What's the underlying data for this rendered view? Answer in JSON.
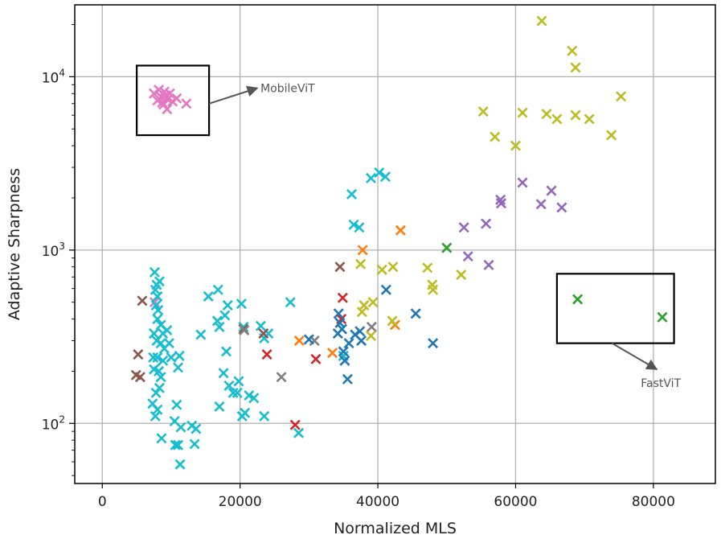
{
  "chart_data": {
    "type": "scatter",
    "title": "",
    "xlabel": "Normalized MLS",
    "ylabel": "Adaptive Sharpness",
    "xlim": [
      -4000,
      89000
    ],
    "ylim": [
      45,
      26000
    ],
    "yscale": "log",
    "grid": true,
    "marker": "x",
    "x_ticks": [
      0,
      20000,
      40000,
      60000,
      80000
    ],
    "x_tick_labels": [
      "0",
      "20000",
      "40000",
      "60000",
      "80000"
    ],
    "y_ticks": [
      100,
      1000,
      10000
    ],
    "y_tick_labels": [
      {
        "base": "10",
        "exp": "2"
      },
      {
        "base": "10",
        "exp": "3"
      },
      {
        "base": "10",
        "exp": "4"
      }
    ],
    "annotations": [
      {
        "text": "MobileViT",
        "box_x": [
          5000,
          15500
        ],
        "box_y": [
          4600,
          11600
        ],
        "arrow_from": [
          15500,
          7000
        ],
        "arrow_to": [
          22500,
          8600
        ]
      },
      {
        "text": "FastViT",
        "box_x": [
          66000,
          83000
        ],
        "box_y": [
          290,
          730
        ],
        "arrow_from": [
          74000,
          290
        ],
        "arrow_to": [
          80500,
          205
        ]
      }
    ],
    "series": [
      {
        "color": "#e377c2",
        "points": [
          [
            7500,
            8000
          ],
          [
            8000,
            7300
          ],
          [
            8200,
            8400
          ],
          [
            8600,
            7600
          ],
          [
            8900,
            6900
          ],
          [
            9000,
            8200
          ],
          [
            9200,
            7800
          ],
          [
            9500,
            7400
          ],
          [
            9800,
            8000
          ],
          [
            10200,
            7200
          ],
          [
            10800,
            7500
          ],
          [
            12200,
            7000
          ],
          [
            9400,
            6500
          ],
          [
            8700,
            7100
          ],
          [
            7600,
            500
          ]
        ]
      },
      {
        "color": "#17becf",
        "points": [
          [
            7600,
            745
          ],
          [
            7700,
            590
          ],
          [
            7900,
            630
          ],
          [
            8000,
            540
          ],
          [
            7800,
            480
          ],
          [
            8100,
            450
          ],
          [
            8300,
            660
          ],
          [
            8000,
            400
          ],
          [
            8500,
            370
          ],
          [
            8800,
            330
          ],
          [
            7500,
            330
          ],
          [
            7900,
            300
          ],
          [
            8500,
            290
          ],
          [
            9000,
            270
          ],
          [
            8000,
            240
          ],
          [
            8800,
            230
          ],
          [
            7500,
            205
          ],
          [
            8200,
            200
          ],
          [
            8500,
            185
          ],
          [
            7800,
            150
          ],
          [
            8300,
            160
          ],
          [
            7300,
            130
          ],
          [
            8000,
            120
          ],
          [
            7700,
            110
          ],
          [
            8600,
            82
          ],
          [
            9400,
            345
          ],
          [
            9700,
            290
          ],
          [
            10000,
            240
          ],
          [
            11200,
            245
          ],
          [
            11000,
            210
          ],
          [
            10800,
            128
          ],
          [
            10500,
            103
          ],
          [
            11400,
            95
          ],
          [
            10600,
            75
          ],
          [
            11000,
            75
          ],
          [
            11300,
            58
          ],
          [
            13000,
            97
          ],
          [
            13600,
            93
          ],
          [
            13400,
            76
          ],
          [
            14300,
            325
          ],
          [
            15400,
            540
          ],
          [
            16800,
            590
          ],
          [
            16700,
            390
          ],
          [
            17000,
            360
          ],
          [
            17800,
            420
          ],
          [
            18200,
            480
          ],
          [
            17000,
            125
          ],
          [
            17600,
            195
          ],
          [
            18400,
            165
          ],
          [
            18000,
            260
          ],
          [
            19000,
            150
          ],
          [
            19600,
            150
          ],
          [
            19800,
            175
          ],
          [
            20200,
            490
          ],
          [
            20500,
            360
          ],
          [
            20700,
            115
          ],
          [
            21300,
            145
          ],
          [
            22000,
            140
          ],
          [
            20300,
            110
          ],
          [
            23000,
            365
          ],
          [
            23500,
            310
          ],
          [
            24100,
            330
          ],
          [
            23500,
            110
          ],
          [
            27300,
            500
          ],
          [
            28500,
            88
          ],
          [
            35000,
            245
          ],
          [
            36200,
            2100
          ],
          [
            36500,
            1400
          ],
          [
            37300,
            1350
          ],
          [
            39000,
            2600
          ],
          [
            40200,
            2800
          ],
          [
            41100,
            2650
          ],
          [
            7400,
            240
          ]
        ]
      },
      {
        "color": "#8c564b",
        "points": [
          [
            5200,
            250
          ],
          [
            4900,
            190
          ],
          [
            5500,
            185
          ],
          [
            5800,
            510
          ],
          [
            23400,
            330
          ],
          [
            34500,
            800
          ],
          [
            20500,
            350
          ]
        ]
      },
      {
        "color": "#d62728",
        "points": [
          [
            23900,
            250
          ],
          [
            28000,
            98
          ],
          [
            31000,
            235
          ],
          [
            34900,
            530
          ],
          [
            34700,
            400
          ]
        ]
      },
      {
        "color": "#7f7f7f",
        "points": [
          [
            26000,
            185
          ],
          [
            30800,
            300
          ],
          [
            39100,
            360
          ],
          [
            20600,
            345
          ]
        ]
      },
      {
        "color": "#ff7f0e",
        "points": [
          [
            28600,
            300
          ],
          [
            33400,
            255
          ],
          [
            37800,
            1000
          ],
          [
            42500,
            370
          ],
          [
            43300,
            1300
          ]
        ]
      },
      {
        "color": "#1f77b4",
        "points": [
          [
            30000,
            305
          ],
          [
            34200,
            330
          ],
          [
            34300,
            430
          ],
          [
            34500,
            380
          ],
          [
            34800,
            350
          ],
          [
            35000,
            260
          ],
          [
            35200,
            230
          ],
          [
            35600,
            180
          ],
          [
            35800,
            290
          ],
          [
            36700,
            325
          ],
          [
            37400,
            340
          ],
          [
            37600,
            300
          ],
          [
            41200,
            590
          ],
          [
            45500,
            430
          ],
          [
            48000,
            290
          ]
        ]
      },
      {
        "color": "#bcbd22",
        "points": [
          [
            37500,
            830
          ],
          [
            37700,
            440
          ],
          [
            38000,
            480
          ],
          [
            39300,
            500
          ],
          [
            39000,
            320
          ],
          [
            40600,
            770
          ],
          [
            42200,
            800
          ],
          [
            42100,
            390
          ],
          [
            47200,
            790
          ],
          [
            47900,
            630
          ],
          [
            48000,
            590
          ],
          [
            52100,
            720
          ],
          [
            55300,
            6300
          ],
          [
            57000,
            4500
          ],
          [
            60000,
            4000
          ],
          [
            61000,
            6200
          ],
          [
            63800,
            21000
          ],
          [
            64500,
            6100
          ],
          [
            66000,
            5700
          ],
          [
            68200,
            14100
          ],
          [
            68700,
            11300
          ],
          [
            68700,
            6000
          ],
          [
            70700,
            5700
          ],
          [
            73900,
            4600
          ],
          [
            75300,
            7700
          ]
        ]
      },
      {
        "color": "#9467bd",
        "points": [
          [
            52500,
            1350
          ],
          [
            53100,
            920
          ],
          [
            55700,
            1420
          ],
          [
            56100,
            820
          ],
          [
            57800,
            1950
          ],
          [
            57900,
            1860
          ],
          [
            61000,
            2450
          ],
          [
            63700,
            1840
          ],
          [
            65200,
            2200
          ],
          [
            66700,
            1760
          ]
        ]
      },
      {
        "color": "#2ca02c",
        "points": [
          [
            50000,
            1030
          ],
          [
            69000,
            520
          ],
          [
            81300,
            410
          ]
        ]
      }
    ]
  }
}
